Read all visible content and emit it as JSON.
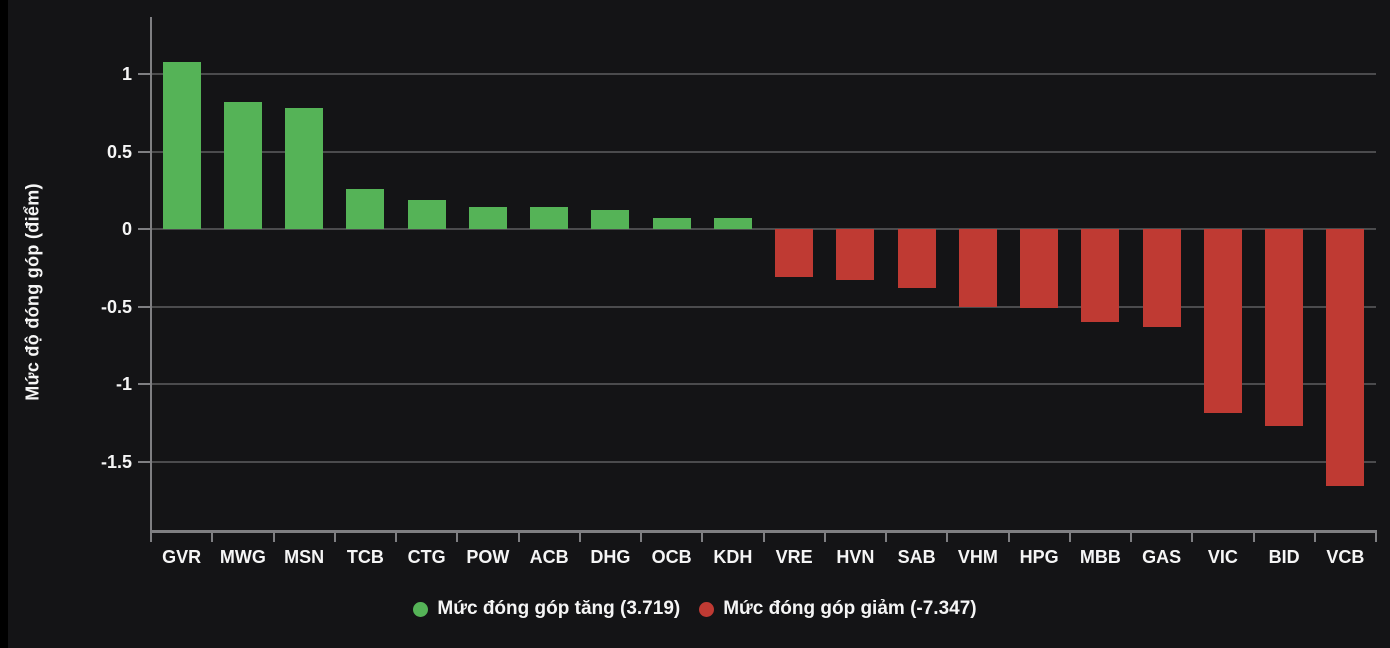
{
  "chart": {
    "y_axis_title": "Mức độ đóng góp (điểm)"
  },
  "legend": {
    "increase_label": "Mức đóng góp tăng (3.719)",
    "decrease_label": "Mức đóng góp giảm (-7.347)"
  },
  "colors": {
    "background": "#141416",
    "left_edge": "#000000",
    "grid": "#4b4b4d",
    "axis": "#7f7f82",
    "text": "#f5f5f5",
    "positive": "#55b357",
    "negative": "#bf3a33"
  },
  "chart_data": {
    "type": "bar",
    "title": "",
    "xlabel": "",
    "ylabel": "Mức độ đóng góp (điểm)",
    "categories": [
      "GVR",
      "MWG",
      "MSN",
      "TCB",
      "CTG",
      "POW",
      "ACB",
      "DHG",
      "OCB",
      "KDH",
      "VRE",
      "HVN",
      "SAB",
      "VHM",
      "HPG",
      "MBB",
      "GAS",
      "VIC",
      "BID",
      "VCB"
    ],
    "values": [
      1.08,
      0.82,
      0.78,
      0.26,
      0.19,
      0.14,
      0.14,
      0.12,
      0.07,
      0.07,
      -0.31,
      -0.33,
      -0.38,
      -0.5,
      -0.51,
      -0.6,
      -0.63,
      -1.19,
      -1.27,
      -1.66
    ],
    "positive_color": "#55b357",
    "negative_color": "#bf3a33",
    "yticks": [
      1,
      0.5,
      0,
      -0.5,
      -1,
      -1.5
    ],
    "ytick_labels": [
      "1",
      "0.5",
      "0",
      "-0.5",
      "-1",
      "-1.5"
    ],
    "ylim": [
      -1.96,
      1.37
    ],
    "grid": true,
    "legend_position": "bottom",
    "legend_entries": [
      {
        "label": "Mức đóng góp tăng (3.719)",
        "color": "#55b357",
        "total": 3.719
      },
      {
        "label": "Mức đóng góp giảm (-7.347)",
        "color": "#bf3a33",
        "total": -7.347
      }
    ]
  }
}
